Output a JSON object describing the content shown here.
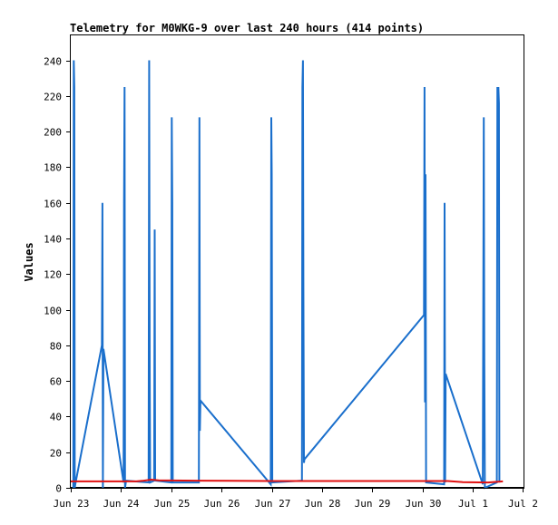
{
  "chart_data": {
    "type": "line",
    "title": "Telemetry for M0WKG-9 over last 240 hours (414 points)",
    "xlabel": "",
    "ylabel": "Values",
    "ylim": [
      0,
      254
    ],
    "yticks": [
      0,
      20,
      40,
      60,
      80,
      100,
      120,
      140,
      160,
      180,
      200,
      220,
      240
    ],
    "x_ticks": [
      "Jun 23",
      "Jun 24",
      "Jun 25",
      "Jun 26",
      "Jun 27",
      "Jun 28",
      "Jun 29",
      "Jun 30",
      "Jul 1",
      "Jul 2"
    ],
    "xlim_days": [
      0,
      9.01
    ],
    "grid": false,
    "series": [
      {
        "color": "#1a6fcc",
        "x_days": [
          0.05,
          0.06,
          0.07,
          0.08,
          0.09,
          0.11,
          0.62,
          0.63,
          0.64,
          0.65,
          1.05,
          1.06,
          1.07,
          1.08,
          1.09,
          1.1,
          1.55,
          1.56,
          1.57,
          1.58,
          1.66,
          1.67,
          1.68,
          1.69,
          2.0,
          2.01,
          2.02,
          2.03,
          2.55,
          2.56,
          2.57,
          2.58,
          3.98,
          3.99,
          4.0,
          4.01,
          4.6,
          4.61,
          4.62,
          4.63,
          4.64,
          4.65,
          7.03,
          7.04,
          7.05,
          7.06,
          7.07,
          7.43,
          7.44,
          7.45,
          7.46,
          8.2,
          8.21,
          8.22,
          8.23,
          8.24,
          8.48,
          8.49,
          8.5,
          8.51,
          8.52,
          8.53
        ],
        "values": [
          0,
          240,
          225,
          0,
          2,
          5,
          80,
          160,
          0,
          78,
          3,
          160,
          225,
          0,
          2,
          4,
          3,
          240,
          65,
          3,
          4,
          145,
          5,
          4,
          3,
          208,
          160,
          3,
          3,
          208,
          32,
          49,
          2,
          208,
          176,
          3,
          4,
          225,
          240,
          112,
          14,
          16,
          97,
          225,
          48,
          176,
          3,
          2,
          160,
          3,
          64,
          2,
          112,
          208,
          72,
          0,
          3,
          225,
          192,
          225,
          216,
          3
        ]
      },
      {
        "color": "#e01010",
        "x_days": [
          0.0,
          1.3,
          1.45,
          1.6,
          1.75,
          2.5,
          4.0,
          6.0,
          7.5,
          7.8,
          8.3,
          8.6
        ],
        "values": [
          3.6,
          3.6,
          4.0,
          4.6,
          4.2,
          4.0,
          3.8,
          3.8,
          3.8,
          3.2,
          3.0,
          3.6
        ]
      }
    ]
  }
}
